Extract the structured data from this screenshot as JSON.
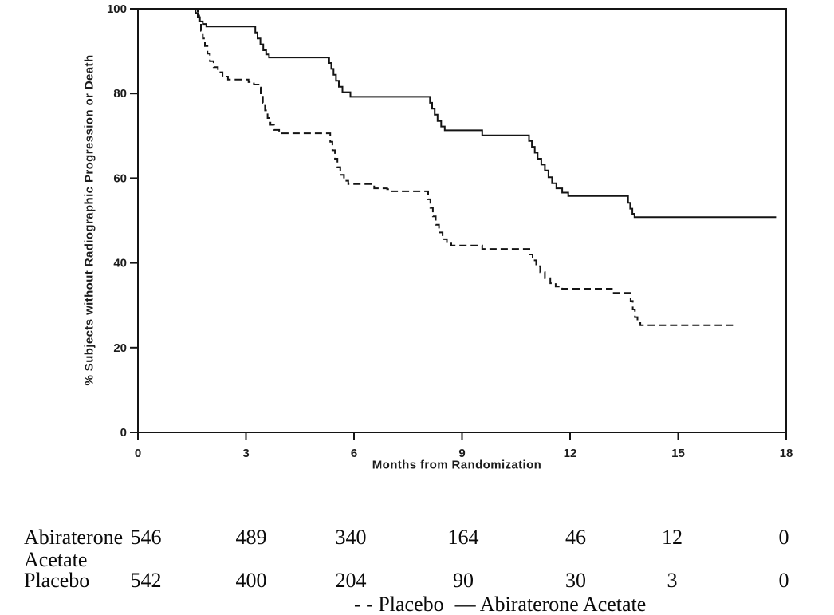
{
  "chart_data": {
    "type": "line",
    "subtype": "kaplan-meier-step",
    "title": "",
    "xlabel": "Months from Randomization",
    "ylabel": "% Subjects without Radiographic Progression or Death",
    "xlim": [
      0,
      18
    ],
    "ylim": [
      0,
      100
    ],
    "x_ticks": [
      0,
      3,
      6,
      9,
      12,
      15,
      18
    ],
    "y_ticks": [
      0,
      20,
      40,
      60,
      80,
      100
    ],
    "grid": false,
    "legend_position": "bottom-center",
    "line_color": "#141414",
    "series": [
      {
        "name": "Abiraterone Acetate",
        "line_style": "solid",
        "points": [
          [
            0,
            100
          ],
          [
            1.55,
            100
          ],
          [
            1.6,
            99
          ],
          [
            1.66,
            98
          ],
          [
            1.72,
            97
          ],
          [
            1.8,
            96.4
          ],
          [
            1.9,
            95.8
          ],
          [
            3.2,
            95.8
          ],
          [
            3.26,
            94.4
          ],
          [
            3.32,
            93
          ],
          [
            3.4,
            91.6
          ],
          [
            3.48,
            90.2
          ],
          [
            3.56,
            89.2
          ],
          [
            3.64,
            88.5
          ],
          [
            5.25,
            88.5
          ],
          [
            5.31,
            87.2
          ],
          [
            5.37,
            85.8
          ],
          [
            5.43,
            84.4
          ],
          [
            5.5,
            83
          ],
          [
            5.58,
            81.6
          ],
          [
            5.68,
            80.3
          ],
          [
            5.9,
            79.2
          ],
          [
            8.05,
            79.2
          ],
          [
            8.11,
            77.8
          ],
          [
            8.17,
            76.4
          ],
          [
            8.24,
            75
          ],
          [
            8.32,
            73.5
          ],
          [
            8.42,
            72.2
          ],
          [
            8.52,
            71.3
          ],
          [
            9.5,
            71.3
          ],
          [
            9.56,
            70.1
          ],
          [
            10.78,
            70.1
          ],
          [
            10.86,
            68.8
          ],
          [
            10.94,
            67.4
          ],
          [
            11.02,
            66
          ],
          [
            11.1,
            64.6
          ],
          [
            11.2,
            63.2
          ],
          [
            11.3,
            61.8
          ],
          [
            11.4,
            60.2
          ],
          [
            11.5,
            58.8
          ],
          [
            11.62,
            57.6
          ],
          [
            11.78,
            56.6
          ],
          [
            11.95,
            55.8
          ],
          [
            13.55,
            55.8
          ],
          [
            13.61,
            54.2
          ],
          [
            13.67,
            52.8
          ],
          [
            13.73,
            51.6
          ],
          [
            13.79,
            50.8
          ],
          [
            17.72,
            50.8
          ]
        ]
      },
      {
        "name": "Placebo",
        "line_style": "dashed",
        "points": [
          [
            0,
            100
          ],
          [
            1.62,
            100
          ],
          [
            1.66,
            98.4
          ],
          [
            1.7,
            96.6
          ],
          [
            1.75,
            94.8
          ],
          [
            1.8,
            93
          ],
          [
            1.86,
            91.2
          ],
          [
            1.93,
            89.4
          ],
          [
            2.0,
            87.6
          ],
          [
            2.1,
            86.2
          ],
          [
            2.22,
            85
          ],
          [
            2.35,
            84
          ],
          [
            2.5,
            83.3
          ],
          [
            3.0,
            83.3
          ],
          [
            3.07,
            82.7
          ],
          [
            3.22,
            82.1
          ],
          [
            3.35,
            81.4
          ],
          [
            3.41,
            79.6
          ],
          [
            3.47,
            77.8
          ],
          [
            3.53,
            76
          ],
          [
            3.6,
            74.2
          ],
          [
            3.68,
            72.6
          ],
          [
            3.78,
            71.4
          ],
          [
            3.92,
            70.6
          ],
          [
            5.28,
            70.6
          ],
          [
            5.34,
            68.6
          ],
          [
            5.4,
            66.6
          ],
          [
            5.47,
            64.6
          ],
          [
            5.54,
            62.6
          ],
          [
            5.62,
            60.8
          ],
          [
            5.72,
            59.4
          ],
          [
            5.84,
            58.6
          ],
          [
            6.5,
            58.6
          ],
          [
            6.56,
            57.6
          ],
          [
            6.92,
            57.4
          ],
          [
            6.98,
            56.9
          ],
          [
            8.0,
            56.9
          ],
          [
            8.06,
            55
          ],
          [
            8.12,
            53
          ],
          [
            8.19,
            51
          ],
          [
            8.27,
            49
          ],
          [
            8.36,
            47.2
          ],
          [
            8.46,
            45.6
          ],
          [
            8.58,
            44.6
          ],
          [
            8.7,
            44.1
          ],
          [
            9.5,
            44.1
          ],
          [
            9.56,
            43.3
          ],
          [
            10.78,
            43.3
          ],
          [
            10.87,
            42
          ],
          [
            10.96,
            40.6
          ],
          [
            11.06,
            39.2
          ],
          [
            11.17,
            37.8
          ],
          [
            11.3,
            36.4
          ],
          [
            11.45,
            35.2
          ],
          [
            11.6,
            34.4
          ],
          [
            11.78,
            33.9
          ],
          [
            13.1,
            33.9
          ],
          [
            13.16,
            32.9
          ],
          [
            13.62,
            32.9
          ],
          [
            13.68,
            31
          ],
          [
            13.74,
            29
          ],
          [
            13.8,
            27.2
          ],
          [
            13.87,
            25.8
          ],
          [
            13.95,
            25.3
          ],
          [
            16.6,
            25.3
          ]
        ]
      }
    ]
  },
  "risk_table": {
    "columns_months": [
      0,
      3,
      6,
      9,
      12,
      15,
      18
    ],
    "rows": [
      {
        "label": "Abiraterone Acetate",
        "label_lines": [
          "Abiraterone",
          "Acetate"
        ],
        "counts": [
          "546",
          "489",
          "340",
          "164",
          "46",
          "12",
          "0"
        ]
      },
      {
        "label": "Placebo",
        "label_lines": [
          "Placebo"
        ],
        "counts": [
          "542",
          "400",
          "204",
          "90",
          "30",
          "3",
          "0"
        ]
      }
    ]
  },
  "legend": {
    "placebo_label": "- - Placebo",
    "abiraterone_label": "— Abiraterone Acetate"
  },
  "colors": {
    "line": "#141414",
    "text": "#0a0a0a",
    "background": "#ffffff"
  }
}
